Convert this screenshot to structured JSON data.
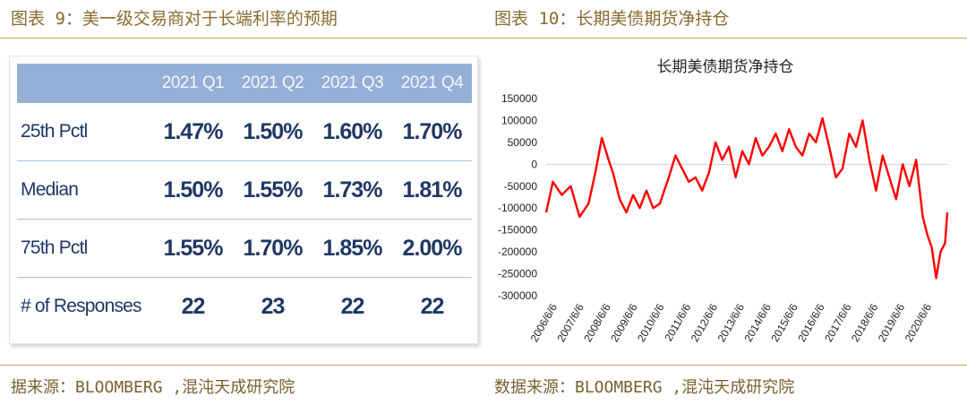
{
  "left": {
    "caption": "图表 9：美一级交易商对于长端利率的预期",
    "source": "据来源：BLOOMBERG ,混沌天成研究院",
    "table": {
      "headers": [
        "",
        "2021 Q1",
        "2021 Q2",
        "2021 Q3",
        "2021 Q4"
      ],
      "rows": [
        {
          "label": "25th Pctl",
          "values": [
            "1.47%",
            "1.50%",
            "1.60%",
            "1.70%"
          ]
        },
        {
          "label": "Median",
          "values": [
            "1.50%",
            "1.55%",
            "1.73%",
            "1.81%"
          ]
        },
        {
          "label": "75th Pctl",
          "values": [
            "1.55%",
            "1.70%",
            "1.85%",
            "2.00%"
          ]
        },
        {
          "label": "# of Responses",
          "values": [
            "22",
            "23",
            "22",
            "22"
          ]
        }
      ]
    }
  },
  "right": {
    "caption": "图表 10：长期美债期货净持仓",
    "source": "数据来源：BLOOMBERG ,混沌天成研究院"
  },
  "colors": {
    "line": "#ff0000",
    "caption": "#8a6b2f",
    "rule": "#c9a25a",
    "table_header": "#94b0d6",
    "table_text": "#1f3864"
  },
  "chart_data": {
    "type": "line",
    "title": "长期美债期货净持仓",
    "xlabel": "",
    "ylabel": "",
    "ylim": [
      -300000,
      150000
    ],
    "yticks": [
      150000,
      100000,
      50000,
      0,
      -50000,
      -100000,
      -150000,
      -200000,
      -250000,
      -300000
    ],
    "xticks": [
      "2006/6/6",
      "2007/6/6",
      "2008/6/6",
      "2009/6/6",
      "2010/6/6",
      "2011/6/6",
      "2012/6/6",
      "2013/6/6",
      "2014/6/6",
      "2015/6/6",
      "2016/6/6",
      "2017/6/6",
      "2018/6/6",
      "2019/6/6",
      "2020/6/6"
    ],
    "x_range": [
      "2006-01",
      "2021-01"
    ],
    "series": [
      {
        "x": [
          "2006-01",
          "2006-04",
          "2006-08",
          "2006-12",
          "2007-04",
          "2007-08",
          "2007-11",
          "2008-02",
          "2008-05",
          "2008-07",
          "2008-10",
          "2009-01",
          "2009-04",
          "2009-07",
          "2009-10",
          "2010-01",
          "2010-04",
          "2010-08",
          "2010-11",
          "2011-02",
          "2011-05",
          "2011-08",
          "2011-11",
          "2012-02",
          "2012-05",
          "2012-08",
          "2012-11",
          "2013-02",
          "2013-05",
          "2013-08",
          "2013-11",
          "2014-02",
          "2014-05",
          "2014-08",
          "2014-11",
          "2015-02",
          "2015-05",
          "2015-08",
          "2015-11",
          "2016-02",
          "2016-05",
          "2016-08",
          "2016-11",
          "2017-02",
          "2017-05",
          "2017-08",
          "2017-11",
          "2018-02",
          "2018-05",
          "2018-08",
          "2018-11",
          "2019-02",
          "2019-05",
          "2019-08",
          "2019-11",
          "2020-02",
          "2020-04",
          "2020-06",
          "2020-08",
          "2020-10",
          "2020-12",
          "2021-01"
        ],
        "values": [
          -110000,
          -40000,
          -70000,
          -50000,
          -120000,
          -90000,
          -20000,
          60000,
          10000,
          -20000,
          -80000,
          -110000,
          -70000,
          -100000,
          -60000,
          -100000,
          -90000,
          -30000,
          20000,
          -10000,
          -40000,
          -30000,
          -60000,
          -20000,
          50000,
          10000,
          40000,
          -30000,
          30000,
          0,
          60000,
          20000,
          40000,
          70000,
          30000,
          80000,
          40000,
          20000,
          70000,
          50000,
          105000,
          40000,
          -30000,
          -10000,
          70000,
          40000,
          100000,
          10000,
          -60000,
          20000,
          -30000,
          -80000,
          0,
          -50000,
          10000,
          -120000,
          -160000,
          -190000,
          -260000,
          -200000,
          -180000,
          -110000
        ]
      }
    ]
  }
}
